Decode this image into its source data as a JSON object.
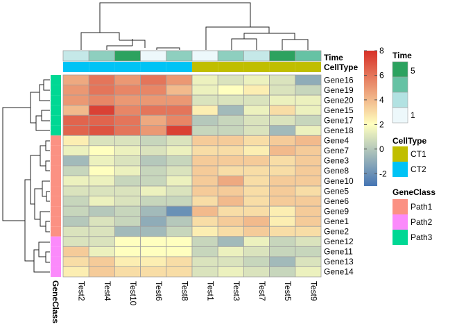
{
  "chart_data": {
    "type": "heatmap",
    "title": "",
    "columns": [
      "Test2",
      "Test4",
      "Test10",
      "Test6",
      "Test8",
      "Test1",
      "Test3",
      "Test7",
      "Test5",
      "Test9"
    ],
    "rows": [
      "Gene16",
      "Gene19",
      "Gene20",
      "Gene15",
      "Gene17",
      "Gene18",
      "Gene4",
      "Gene7",
      "Gene3",
      "Gene8",
      "Gene10",
      "Gene5",
      "Gene6",
      "Gene9",
      "Gene1",
      "Gene2",
      "Gene12",
      "Gene11",
      "Gene13",
      "Gene14"
    ],
    "values": [
      [
        4.5,
        6.0,
        5.0,
        6.0,
        5.0,
        1.5,
        1.0,
        1.5,
        1.0,
        -1.0
      ],
      [
        5.0,
        6.0,
        5.5,
        5.5,
        4.0,
        1.5,
        2.0,
        2.5,
        1.0,
        0.5
      ],
      [
        5.0,
        5.5,
        5.0,
        5.0,
        5.0,
        1.0,
        1.0,
        1.0,
        1.5,
        1.5
      ],
      [
        4.0,
        7.5,
        5.5,
        6.0,
        6.0,
        2.5,
        -0.5,
        1.5,
        3.0,
        1.5
      ],
      [
        6.5,
        6.5,
        6.0,
        4.5,
        5.5,
        0.0,
        0.5,
        1.0,
        1.0,
        0.5
      ],
      [
        6.5,
        7.0,
        6.0,
        5.0,
        7.5,
        0.5,
        0.5,
        1.0,
        -0.5,
        1.5
      ],
      [
        2.5,
        1.0,
        1.0,
        0.5,
        1.0,
        3.5,
        3.5,
        3.0,
        3.5,
        4.0
      ],
      [
        1.5,
        2.0,
        1.5,
        1.0,
        1.5,
        3.0,
        3.0,
        2.5,
        4.0,
        3.5
      ],
      [
        -0.5,
        1.5,
        1.0,
        0.0,
        0.5,
        3.5,
        3.5,
        3.5,
        3.0,
        3.5
      ],
      [
        0.5,
        2.0,
        1.5,
        0.5,
        1.0,
        3.5,
        3.0,
        3.0,
        3.0,
        3.5
      ],
      [
        1.5,
        1.5,
        0.5,
        0.5,
        1.5,
        3.5,
        4.5,
        3.0,
        3.5,
        3.5
      ],
      [
        1.0,
        1.0,
        1.0,
        1.5,
        1.0,
        3.5,
        3.5,
        3.0,
        3.5,
        3.0
      ],
      [
        0.5,
        1.5,
        1.0,
        0.5,
        0.5,
        3.0,
        4.0,
        3.0,
        3.5,
        3.5
      ],
      [
        0.5,
        0.0,
        0.5,
        -0.5,
        -2.0,
        4.0,
        3.0,
        3.0,
        2.5,
        3.5
      ],
      [
        0.0,
        1.0,
        0.5,
        -1.0,
        0.0,
        3.0,
        3.5,
        4.0,
        2.5,
        3.5
      ],
      [
        1.0,
        1.0,
        -0.5,
        -0.5,
        0.5,
        2.5,
        3.0,
        3.5,
        3.0,
        3.0
      ],
      [
        1.0,
        1.0,
        2.0,
        2.0,
        2.0,
        0.5,
        -0.5,
        1.5,
        0.5,
        1.0
      ],
      [
        3.5,
        1.5,
        2.0,
        2.0,
        2.0,
        0.5,
        1.5,
        1.0,
        0.5,
        0.5
      ],
      [
        3.0,
        3.5,
        2.5,
        2.5,
        3.0,
        1.0,
        1.0,
        0.5,
        -0.5,
        1.0
      ],
      [
        2.5,
        3.5,
        3.0,
        3.0,
        3.0,
        1.0,
        1.5,
        1.0,
        0.5,
        1.5
      ]
    ],
    "color_scale": {
      "stops": [
        {
          "value": -3,
          "color": "#4575B4"
        },
        {
          "value": 2,
          "color": "#FFFFBF"
        },
        {
          "value": 8,
          "color": "#D73027"
        }
      ],
      "ticks": [
        -2,
        0,
        2,
        4,
        6,
        8
      ]
    },
    "column_annotations": {
      "Time": [
        2,
        3,
        5,
        1,
        3,
        1,
        3,
        2,
        5,
        4
      ],
      "CellType": [
        "CT2",
        "CT2",
        "CT2",
        "CT2",
        "CT2",
        "CT1",
        "CT1",
        "CT1",
        "CT1",
        "CT1"
      ]
    },
    "row_annotations": {
      "GeneClass": [
        "Path3",
        "Path3",
        "Path3",
        "Path3",
        "Path3",
        "Path3",
        "Path1",
        "Path1",
        "Path1",
        "Path1",
        "Path1",
        "Path1",
        "Path1",
        "Path1",
        "Path1",
        "Path1",
        "Path2",
        "Path2",
        "Path2",
        "Path2"
      ]
    },
    "annotation_titles": {
      "time": "Time",
      "celltype": "CellType",
      "geneclass": "GeneClass"
    },
    "legends": {
      "time": {
        "title": "Time",
        "labels": [
          "5",
          "1"
        ],
        "colors": [
          "#2CA25F",
          "#66C2A4",
          "#B2E2E2",
          "#EDF8FB"
        ]
      },
      "celltype": {
        "title": "CellType",
        "items": [
          {
            "label": "CT1",
            "color": "#C0BE00"
          },
          {
            "label": "CT2",
            "color": "#00C3F5"
          }
        ]
      },
      "geneclass": {
        "title": "GeneClass",
        "items": [
          {
            "label": "Path1",
            "color": "#FB9183"
          },
          {
            "label": "Path2",
            "color": "#FB8AFB"
          },
          {
            "label": "Path3",
            "color": "#00D894"
          }
        ]
      }
    },
    "dendrograms": {
      "columns": "hierarchical clustering of samples (top)",
      "rows": "hierarchical clustering of genes (left)"
    }
  }
}
